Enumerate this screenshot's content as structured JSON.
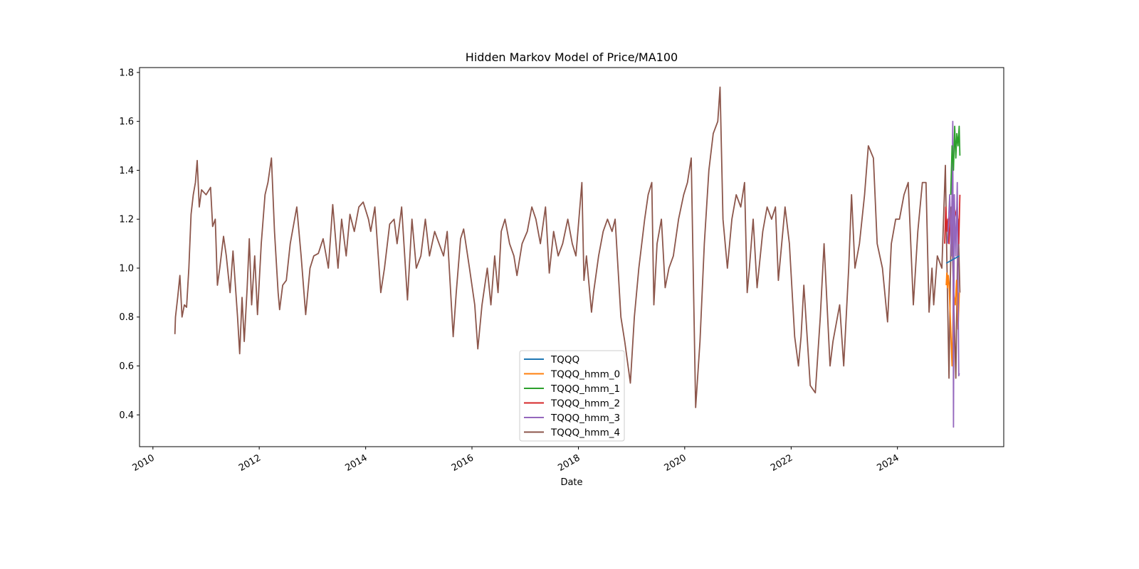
{
  "chart_data": {
    "type": "line",
    "title": "Hidden Markov Model of Price/MA100",
    "xlabel": "Date",
    "ylabel": "",
    "xlim": [
      "2009-10-01",
      "2025-12-31"
    ],
    "ylim": [
      0.27,
      1.82
    ],
    "x_ticks": [
      "2010",
      "2012",
      "2014",
      "2016",
      "2018",
      "2020",
      "2022",
      "2024"
    ],
    "y_ticks": [
      0.4,
      0.6,
      0.8,
      1.0,
      1.2,
      1.4,
      1.6,
      1.8
    ],
    "legend": {
      "position": "lower-center"
    },
    "grid": false,
    "series": [
      {
        "name": "TQQQ",
        "color": "#1f77b4",
        "points": [
          [
            "2024-12-01",
            1.02
          ],
          [
            "2025-03-01",
            1.05
          ]
        ]
      },
      {
        "name": "TQQQ_hmm_0",
        "color": "#ff7f0e",
        "points": [
          [
            "2024-12-01",
            0.93
          ],
          [
            "2024-12-05",
            0.98
          ],
          [
            "2024-12-10",
            0.92
          ],
          [
            "2024-12-15",
            0.97
          ],
          [
            "2024-12-20",
            0.94
          ],
          [
            "2025-01-10",
            0.6
          ],
          [
            "2025-01-20",
            0.9
          ],
          [
            "2025-02-01",
            0.85
          ],
          [
            "2025-02-10",
            0.95
          ],
          [
            "2025-02-20",
            0.75
          ],
          [
            "2025-03-01",
            0.9
          ]
        ]
      },
      {
        "name": "TQQQ_hmm_1",
        "color": "#2ca02c",
        "points": [
          [
            "2025-01-01",
            1.3
          ],
          [
            "2025-01-10",
            1.5
          ],
          [
            "2025-01-20",
            1.4
          ],
          [
            "2025-01-28",
            1.58
          ],
          [
            "2025-02-05",
            1.45
          ],
          [
            "2025-02-12",
            1.55
          ],
          [
            "2025-02-20",
            1.5
          ],
          [
            "2025-02-28",
            1.58
          ],
          [
            "2025-03-05",
            1.46
          ]
        ]
      },
      {
        "name": "TQQQ_hmm_2",
        "color": "#d62728",
        "points": [
          [
            "2024-11-20",
            1.1
          ],
          [
            "2024-11-28",
            1.25
          ],
          [
            "2024-12-05",
            1.15
          ],
          [
            "2024-12-12",
            1.2
          ],
          [
            "2024-12-20",
            1.1
          ],
          [
            "2024-12-28",
            1.22
          ],
          [
            "2025-01-05",
            1.15
          ],
          [
            "2025-02-15",
            1.25
          ],
          [
            "2025-02-25",
            1.1
          ],
          [
            "2025-03-05",
            1.3
          ]
        ]
      },
      {
        "name": "TQQQ_hmm_3",
        "color": "#9467bd",
        "points": [
          [
            "2024-12-10",
            1.1
          ],
          [
            "2024-12-25",
            1.3
          ],
          [
            "2025-01-05",
            1.05
          ],
          [
            "2025-01-15",
            1.6
          ],
          [
            "2025-01-20",
            0.35
          ],
          [
            "2025-01-25",
            1.3
          ],
          [
            "2025-02-05",
            1.05
          ],
          [
            "2025-02-15",
            1.35
          ],
          [
            "2025-02-25",
            0.56
          ],
          [
            "2025-03-01",
            0.57
          ]
        ]
      },
      {
        "name": "TQQQ_hmm_4",
        "color": "#8c564b",
        "points": [
          [
            "2010-06-01",
            0.73
          ],
          [
            "2010-06-05",
            0.8
          ],
          [
            "2010-06-20",
            0.88
          ],
          [
            "2010-07-05",
            0.97
          ],
          [
            "2010-07-20",
            0.8
          ],
          [
            "2010-08-05",
            0.85
          ],
          [
            "2010-08-20",
            0.84
          ],
          [
            "2010-09-05",
            1.0
          ],
          [
            "2010-09-20",
            1.22
          ],
          [
            "2010-10-05",
            1.3
          ],
          [
            "2010-10-20",
            1.35
          ],
          [
            "2010-11-01",
            1.44
          ],
          [
            "2010-11-15",
            1.25
          ],
          [
            "2010-12-01",
            1.32
          ],
          [
            "2011-01-01",
            1.3
          ],
          [
            "2011-02-01",
            1.33
          ],
          [
            "2011-02-15",
            1.17
          ],
          [
            "2011-03-05",
            1.2
          ],
          [
            "2011-03-20",
            0.93
          ],
          [
            "2011-04-05",
            1.0
          ],
          [
            "2011-05-01",
            1.13
          ],
          [
            "2011-05-20",
            1.05
          ],
          [
            "2011-06-15",
            0.9
          ],
          [
            "2011-07-05",
            1.07
          ],
          [
            "2011-08-05",
            0.8
          ],
          [
            "2011-08-20",
            0.65
          ],
          [
            "2011-09-05",
            0.88
          ],
          [
            "2011-09-20",
            0.7
          ],
          [
            "2011-10-10",
            0.92
          ],
          [
            "2011-10-25",
            1.12
          ],
          [
            "2011-11-10",
            0.85
          ],
          [
            "2011-12-01",
            1.05
          ],
          [
            "2011-12-20",
            0.81
          ],
          [
            "2012-01-15",
            1.1
          ],
          [
            "2012-02-10",
            1.3
          ],
          [
            "2012-03-01",
            1.35
          ],
          [
            "2012-03-25",
            1.45
          ],
          [
            "2012-04-15",
            1.15
          ],
          [
            "2012-05-10",
            0.9
          ],
          [
            "2012-05-20",
            0.83
          ],
          [
            "2012-06-10",
            0.93
          ],
          [
            "2012-07-05",
            0.95
          ],
          [
            "2012-08-01",
            1.1
          ],
          [
            "2012-09-15",
            1.25
          ],
          [
            "2012-10-15",
            1.05
          ],
          [
            "2012-11-15",
            0.81
          ],
          [
            "2012-12-15",
            1.0
          ],
          [
            "2013-01-10",
            1.05
          ],
          [
            "2013-02-10",
            1.06
          ],
          [
            "2013-03-15",
            1.12
          ],
          [
            "2013-04-20",
            1.0
          ],
          [
            "2013-05-20",
            1.26
          ],
          [
            "2013-06-25",
            1.0
          ],
          [
            "2013-07-20",
            1.2
          ],
          [
            "2013-08-20",
            1.05
          ],
          [
            "2013-09-15",
            1.22
          ],
          [
            "2013-10-15",
            1.15
          ],
          [
            "2013-11-15",
            1.25
          ],
          [
            "2013-12-15",
            1.27
          ],
          [
            "2014-01-20",
            1.2
          ],
          [
            "2014-02-05",
            1.15
          ],
          [
            "2014-03-05",
            1.25
          ],
          [
            "2014-04-15",
            0.9
          ],
          [
            "2014-05-10",
            1.0
          ],
          [
            "2014-06-15",
            1.18
          ],
          [
            "2014-07-15",
            1.2
          ],
          [
            "2014-08-05",
            1.1
          ],
          [
            "2014-09-05",
            1.25
          ],
          [
            "2014-10-15",
            0.87
          ],
          [
            "2014-11-15",
            1.2
          ],
          [
            "2014-12-15",
            1.0
          ],
          [
            "2015-01-15",
            1.05
          ],
          [
            "2015-02-15",
            1.2
          ],
          [
            "2015-03-15",
            1.05
          ],
          [
            "2015-04-20",
            1.15
          ],
          [
            "2015-05-20",
            1.1
          ],
          [
            "2015-06-20",
            1.05
          ],
          [
            "2015-07-15",
            1.15
          ],
          [
            "2015-08-25",
            0.72
          ],
          [
            "2015-09-15",
            0.9
          ],
          [
            "2015-10-15",
            1.12
          ],
          [
            "2015-11-05",
            1.16
          ],
          [
            "2015-12-15",
            1.0
          ],
          [
            "2016-01-20",
            0.85
          ],
          [
            "2016-02-10",
            0.67
          ],
          [
            "2016-03-10",
            0.85
          ],
          [
            "2016-04-15",
            1.0
          ],
          [
            "2016-05-10",
            0.85
          ],
          [
            "2016-06-05",
            1.05
          ],
          [
            "2016-06-28",
            0.9
          ],
          [
            "2016-07-20",
            1.15
          ],
          [
            "2016-08-15",
            1.2
          ],
          [
            "2016-09-15",
            1.1
          ],
          [
            "2016-10-15",
            1.05
          ],
          [
            "2016-11-05",
            0.97
          ],
          [
            "2016-12-10",
            1.1
          ],
          [
            "2017-01-15",
            1.15
          ],
          [
            "2017-02-15",
            1.25
          ],
          [
            "2017-03-15",
            1.2
          ],
          [
            "2017-04-15",
            1.1
          ],
          [
            "2017-05-20",
            1.25
          ],
          [
            "2017-06-15",
            0.98
          ],
          [
            "2017-07-15",
            1.15
          ],
          [
            "2017-08-15",
            1.05
          ],
          [
            "2017-09-15",
            1.1
          ],
          [
            "2017-10-20",
            1.2
          ],
          [
            "2017-11-20",
            1.1
          ],
          [
            "2017-12-15",
            1.05
          ],
          [
            "2018-01-25",
            1.35
          ],
          [
            "2018-02-08",
            0.95
          ],
          [
            "2018-02-25",
            1.05
          ],
          [
            "2018-04-01",
            0.82
          ],
          [
            "2018-04-15",
            0.9
          ],
          [
            "2018-05-20",
            1.05
          ],
          [
            "2018-06-20",
            1.15
          ],
          [
            "2018-07-20",
            1.2
          ],
          [
            "2018-08-20",
            1.15
          ],
          [
            "2018-09-10",
            1.2
          ],
          [
            "2018-10-20",
            0.8
          ],
          [
            "2018-11-15",
            0.7
          ],
          [
            "2018-12-24",
            0.53
          ],
          [
            "2019-01-20",
            0.8
          ],
          [
            "2019-02-20",
            1.0
          ],
          [
            "2019-04-01",
            1.2
          ],
          [
            "2019-04-25",
            1.3
          ],
          [
            "2019-05-20",
            1.35
          ],
          [
            "2019-06-03",
            0.85
          ],
          [
            "2019-06-25",
            1.1
          ],
          [
            "2019-07-25",
            1.2
          ],
          [
            "2019-08-20",
            0.92
          ],
          [
            "2019-09-15",
            1.0
          ],
          [
            "2019-10-15",
            1.05
          ],
          [
            "2019-11-20",
            1.2
          ],
          [
            "2019-12-25",
            1.3
          ],
          [
            "2020-01-20",
            1.35
          ],
          [
            "2020-02-15",
            1.45
          ],
          [
            "2020-03-16",
            0.43
          ],
          [
            "2020-04-15",
            0.7
          ],
          [
            "2020-05-15",
            1.1
          ],
          [
            "2020-06-15",
            1.4
          ],
          [
            "2020-07-15",
            1.55
          ],
          [
            "2020-08-15",
            1.6
          ],
          [
            "2020-08-31",
            1.74
          ],
          [
            "2020-09-20",
            1.2
          ],
          [
            "2020-10-20",
            1.0
          ],
          [
            "2020-11-20",
            1.2
          ],
          [
            "2020-12-20",
            1.3
          ],
          [
            "2021-01-20",
            1.25
          ],
          [
            "2021-02-15",
            1.35
          ],
          [
            "2021-03-05",
            0.9
          ],
          [
            "2021-03-20",
            1.0
          ],
          [
            "2021-04-15",
            1.2
          ],
          [
            "2021-05-12",
            0.92
          ],
          [
            "2021-06-20",
            1.15
          ],
          [
            "2021-07-20",
            1.25
          ],
          [
            "2021-08-20",
            1.2
          ],
          [
            "2021-09-15",
            1.25
          ],
          [
            "2021-10-05",
            0.95
          ],
          [
            "2021-11-20",
            1.25
          ],
          [
            "2021-12-20",
            1.1
          ],
          [
            "2022-01-25",
            0.72
          ],
          [
            "2022-02-20",
            0.6
          ],
          [
            "2022-03-10",
            0.72
          ],
          [
            "2022-03-29",
            0.93
          ],
          [
            "2022-05-12",
            0.52
          ],
          [
            "2022-06-16",
            0.49
          ],
          [
            "2022-07-20",
            0.8
          ],
          [
            "2022-08-15",
            1.1
          ],
          [
            "2022-09-25",
            0.6
          ],
          [
            "2022-10-15",
            0.7
          ],
          [
            "2022-11-30",
            0.85
          ],
          [
            "2022-12-28",
            0.6
          ],
          [
            "2023-01-31",
            1.0
          ],
          [
            "2023-02-20",
            1.3
          ],
          [
            "2023-03-15",
            1.0
          ],
          [
            "2023-04-15",
            1.1
          ],
          [
            "2023-05-20",
            1.3
          ],
          [
            "2023-06-15",
            1.5
          ],
          [
            "2023-07-20",
            1.45
          ],
          [
            "2023-08-15",
            1.1
          ],
          [
            "2023-09-20",
            1.0
          ],
          [
            "2023-10-25",
            0.78
          ],
          [
            "2023-11-20",
            1.1
          ],
          [
            "2023-12-20",
            1.2
          ],
          [
            "2024-01-15",
            1.2
          ],
          [
            "2024-02-15",
            1.3
          ],
          [
            "2024-03-15",
            1.35
          ],
          [
            "2024-04-19",
            0.85
          ],
          [
            "2024-05-20",
            1.15
          ],
          [
            "2024-06-20",
            1.35
          ],
          [
            "2024-07-15",
            1.35
          ],
          [
            "2024-08-05",
            0.82
          ],
          [
            "2024-08-25",
            1.0
          ],
          [
            "2024-09-06",
            0.85
          ],
          [
            "2024-10-01",
            1.05
          ],
          [
            "2024-11-01",
            1.0
          ],
          [
            "2024-11-25",
            1.42
          ],
          [
            "2024-12-05",
            1.05
          ],
          [
            "2024-12-20",
            0.55
          ],
          [
            "2025-01-05",
            1.25
          ],
          [
            "2025-01-20",
            0.9
          ],
          [
            "2025-02-05",
            0.55
          ],
          [
            "2025-02-20",
            1.2
          ],
          [
            "2025-03-05",
            0.9
          ]
        ]
      }
    ]
  }
}
